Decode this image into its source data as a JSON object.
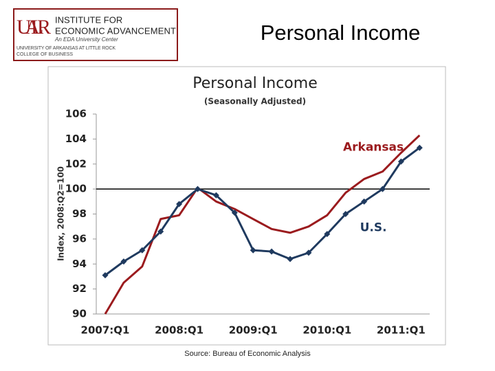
{
  "header": {
    "logo_letters": "UA LR",
    "logo_line1": "INSTITUTE FOR",
    "logo_line2": "ECONOMIC ADVANCEMENT",
    "logo_line3": "An EDA University Center",
    "logo_line4": "UNIVERSITY OF ARKANSAS AT LITTLE ROCK",
    "logo_line5": "COLLEGE OF BUSINESS",
    "slide_title": "Personal Income"
  },
  "chart_data": {
    "type": "line",
    "title": "Personal Income",
    "subtitle": "(Seasonally Adjusted)",
    "y_label": "Index, 2008:Q2=100",
    "categories": [
      "2007:Q1",
      null,
      null,
      null,
      "2008:Q1",
      null,
      null,
      null,
      "2009:Q1",
      null,
      null,
      null,
      "2010:Q1",
      null,
      null,
      null,
      "2011:Q1",
      null
    ],
    "series": [
      {
        "name": "Arkansas",
        "color": "#9b1b1e",
        "marker": false,
        "values": [
          90.0,
          92.5,
          93.8,
          97.6,
          97.9,
          100.1,
          99.0,
          98.4,
          97.6,
          96.8,
          96.5,
          97.0,
          97.9,
          99.7,
          100.8,
          101.4,
          102.9,
          104.3
        ]
      },
      {
        "name": "U.S.",
        "color": "#1f3a5f",
        "marker": true,
        "values": [
          93.1,
          94.2,
          95.1,
          96.6,
          98.8,
          100.0,
          99.5,
          98.1,
          95.1,
          95.0,
          94.4,
          94.9,
          96.4,
          98.0,
          99.0,
          100.0,
          102.2,
          103.3
        ]
      }
    ],
    "ylim": [
      90,
      106
    ],
    "yticks": [
      90,
      92,
      94,
      96,
      98,
      100,
      102,
      104,
      106
    ],
    "reference_line": 100,
    "grid": false
  },
  "source": "Source:  Bureau of Economic Analysis"
}
